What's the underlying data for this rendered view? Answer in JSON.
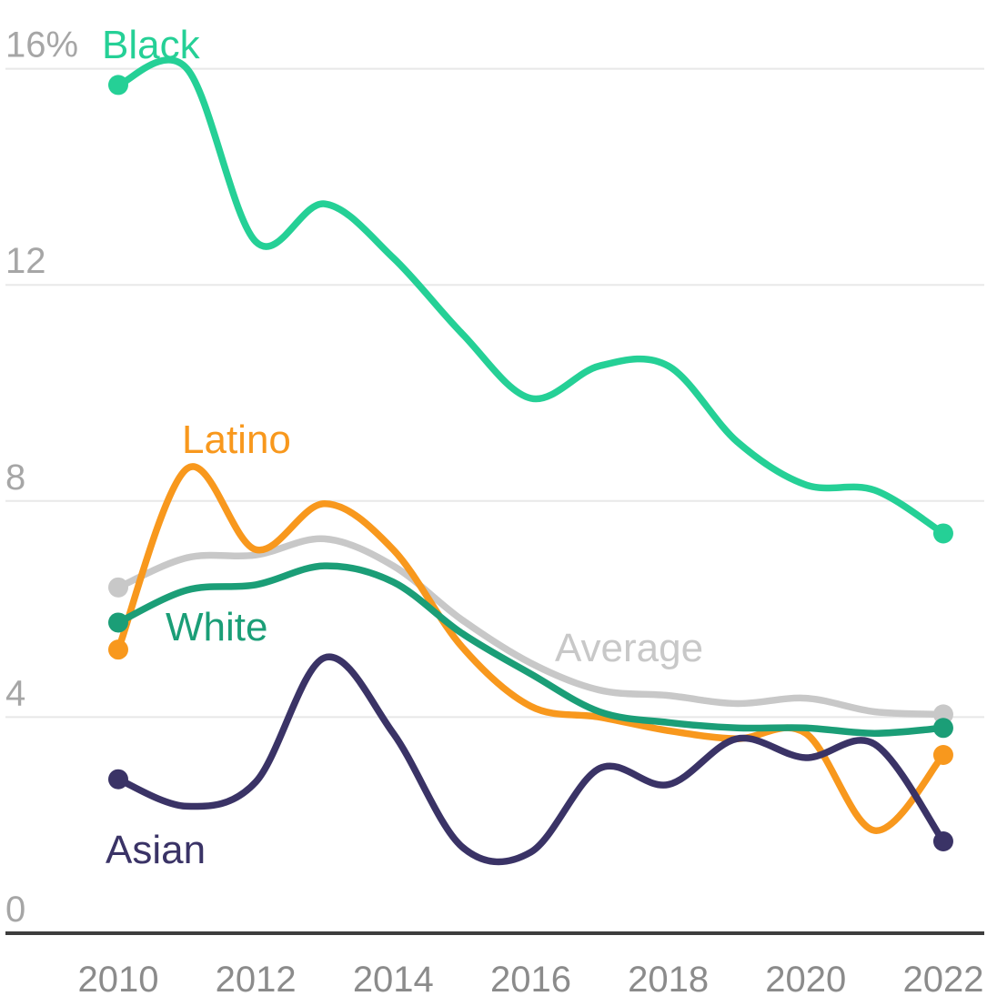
{
  "chart": {
    "y_axis": {
      "ticks": [
        {
          "label": "16%",
          "value": 16
        },
        {
          "label": "12",
          "value": 12
        },
        {
          "label": "8",
          "value": 8
        },
        {
          "label": "4",
          "value": 4
        },
        {
          "label": "0",
          "value": 0
        }
      ]
    },
    "x_axis": {
      "ticks": [
        {
          "label": "2010",
          "value": 2010
        },
        {
          "label": "2012",
          "value": 2012
        },
        {
          "label": "2014",
          "value": 2014
        },
        {
          "label": "2016",
          "value": 2016
        },
        {
          "label": "2018",
          "value": 2018
        },
        {
          "label": "2020",
          "value": 2020
        },
        {
          "label": "2022",
          "value": 2022
        }
      ]
    },
    "colors": {
      "black_series": "#25d096",
      "latino_series": "#f8981d",
      "white_series": "#1b9e77",
      "average_series": "#c8c8c8",
      "asian_series": "#3a3366",
      "gridline": "#e8e8e8",
      "axis_line": "#3d3d3d",
      "y_tick_text": "#a6a6a6",
      "x_tick_text": "#8b8b8b"
    }
  },
  "chart_data": {
    "type": "line",
    "title": "",
    "xlabel": "",
    "ylabel": "",
    "x": [
      2010,
      2011,
      2012,
      2013,
      2014,
      2015,
      2016,
      2017,
      2018,
      2019,
      2020,
      2021,
      2022
    ],
    "xlim": [
      2010,
      2022
    ],
    "ylim": [
      0,
      17.5
    ],
    "grid": true,
    "legend_position": "inline-labels",
    "unit": "%",
    "series": [
      {
        "name": "Average",
        "color": "#c8c8c8",
        "values": [
          6.4,
          6.95,
          7.0,
          7.3,
          6.8,
          5.8,
          5.0,
          4.5,
          4.4,
          4.25,
          4.35,
          4.1,
          4.05
        ]
      },
      {
        "name": "Latino",
        "color": "#f8981d",
        "values": [
          5.25,
          8.6,
          7.1,
          7.95,
          7.1,
          5.3,
          4.2,
          4.0,
          3.75,
          3.6,
          3.7,
          1.9,
          3.3
        ]
      },
      {
        "name": "White",
        "color": "#1b9e77",
        "values": [
          5.75,
          6.35,
          6.45,
          6.8,
          6.5,
          5.55,
          4.8,
          4.1,
          3.9,
          3.8,
          3.8,
          3.7,
          3.8
        ]
      },
      {
        "name": "Asian",
        "color": "#3a3366",
        "values": [
          2.85,
          2.35,
          2.8,
          5.1,
          3.7,
          1.6,
          1.5,
          3.05,
          2.75,
          3.6,
          3.25,
          3.5,
          1.7
        ]
      },
      {
        "name": "Black",
        "color": "#25d096",
        "values": [
          15.7,
          16.0,
          12.8,
          13.5,
          12.5,
          11.1,
          9.9,
          10.5,
          10.5,
          9.1,
          8.3,
          8.2,
          7.4
        ]
      }
    ]
  }
}
